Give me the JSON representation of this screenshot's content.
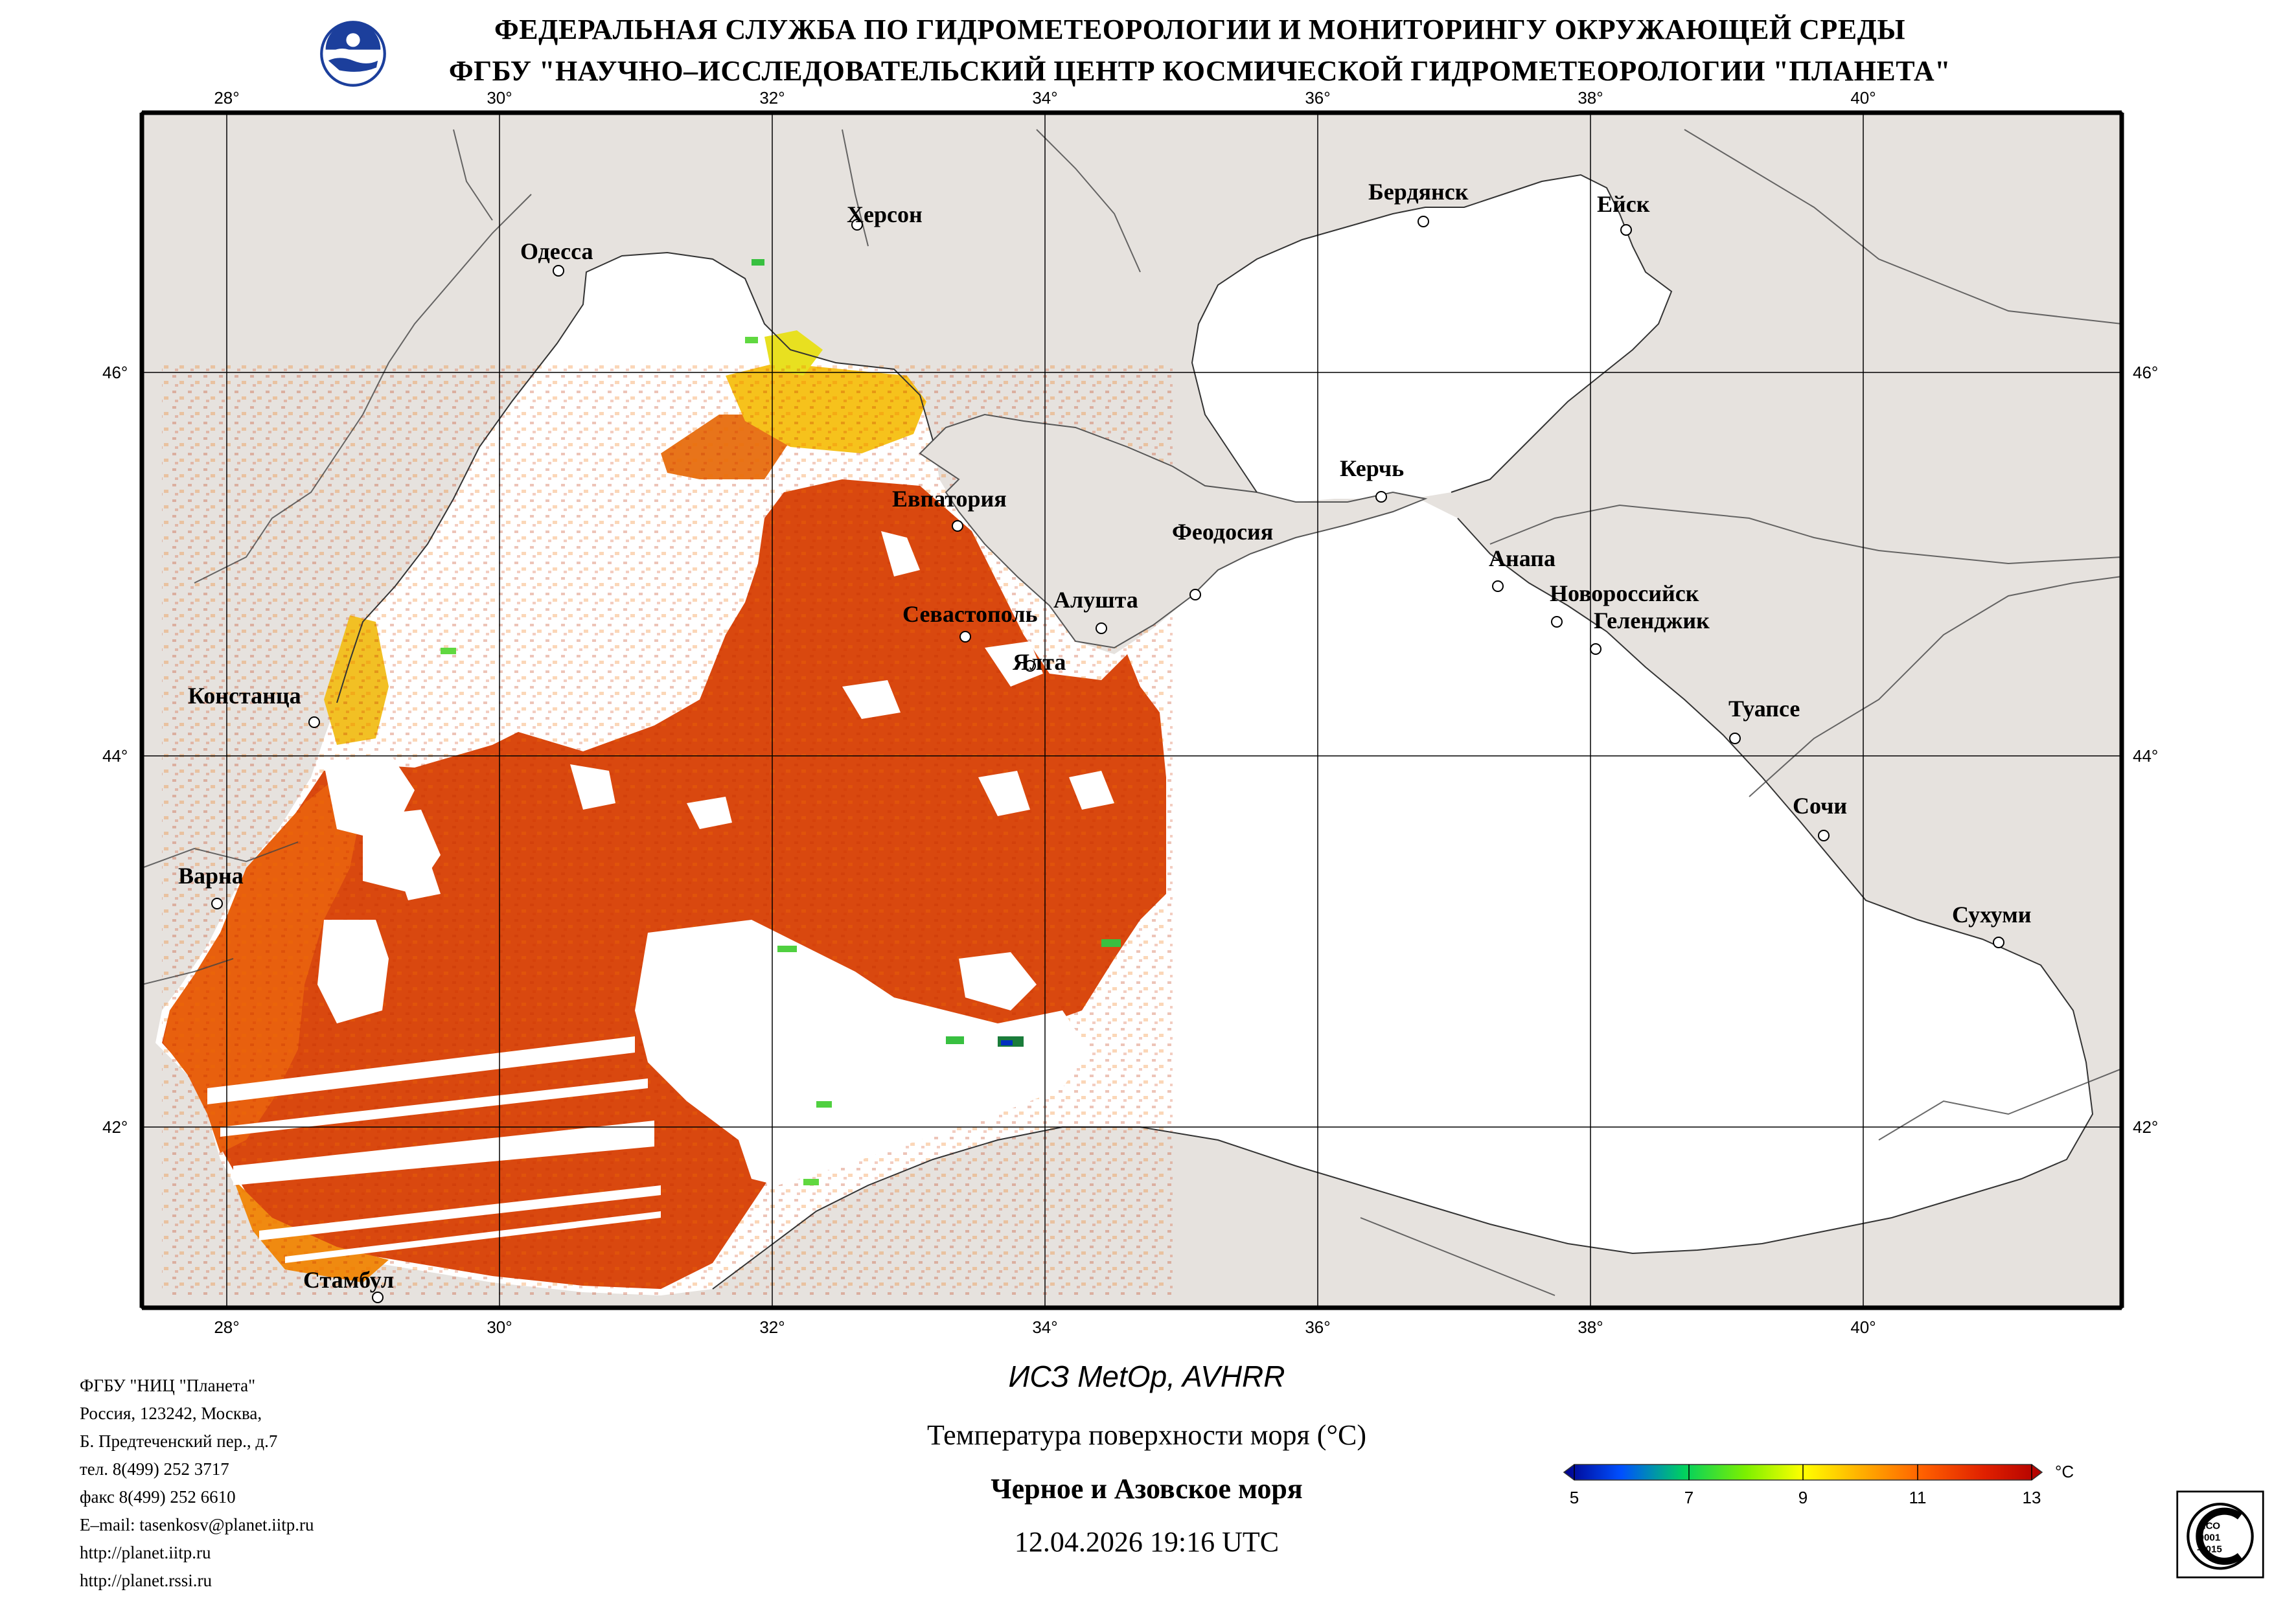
{
  "header": {
    "line1": "ФЕДЕРАЛЬНАЯ СЛУЖБА ПО ГИДРОМЕТЕОРОЛОГИИ И МОНИТОРИНГУ ОКРУЖАЮЩЕЙ СРЕДЫ",
    "line2": "ФГБУ \"НАУЧНО–ИССЛЕДОВАТЕЛЬСКИЙ ЦЕНТР КОСМИЧЕСКОЙ ГИДРОМЕТЕОРОЛОГИИ \"ПЛАНЕТА\"",
    "logo_icon": "planeta-globe-logo"
  },
  "map": {
    "lon_labels": [
      "28°",
      "30°",
      "32°",
      "34°",
      "36°",
      "38°",
      "40°"
    ],
    "lat_labels": [
      "46°",
      "44°",
      "42°"
    ],
    "cities": [
      {
        "name": "Одесса"
      },
      {
        "name": "Херсон"
      },
      {
        "name": "Бердянск"
      },
      {
        "name": "Ейск"
      },
      {
        "name": "Евпатория"
      },
      {
        "name": "Керчь"
      },
      {
        "name": "Феодосия"
      },
      {
        "name": "Анапа"
      },
      {
        "name": "Новороссийск"
      },
      {
        "name": "Геленджик"
      },
      {
        "name": "Севастополь"
      },
      {
        "name": "Алушта"
      },
      {
        "name": "Ялта"
      },
      {
        "name": "Констанца"
      },
      {
        "name": "Туапсе"
      },
      {
        "name": "Сочи"
      },
      {
        "name": "Варна"
      },
      {
        "name": "Сухуми"
      },
      {
        "name": "Стамбул"
      }
    ],
    "colors": {
      "land": "#e6e2de",
      "sea_nodata": "#ffffff",
      "grid": "#000000"
    }
  },
  "footer": {
    "org_lines": [
      "ФГБУ \"НИЦ \"Планета\"",
      "Россия, 123242, Москва,",
      "Б. Предтеченский пер., д.7",
      "тел. 8(499) 252 3717",
      "факс 8(499) 252 6610",
      "E–mail: tasenkosv@planet.iitp.ru",
      "http://planet.iitp.ru",
      "http://planet.rssi.ru"
    ],
    "satellite": "ИСЗ MetOp, AVHRR",
    "parameter": "Температура поверхности моря (°C)",
    "region": "Черное и Азовское моря",
    "datetime": "12.04.2026 19:16 UTC"
  },
  "colorbar": {
    "unit": "°C",
    "ticks": [
      "5",
      "7",
      "9",
      "11",
      "13"
    ],
    "colors": [
      "#00008b",
      "#0050ff",
      "#00d060",
      "#7cf000",
      "#ffff00",
      "#ffb000",
      "#ff6000",
      "#e02000",
      "#b00000"
    ]
  },
  "certificate": {
    "icon": "iso-certificate-icon",
    "line1": "ИСО",
    "line2": "9001",
    "line3": "-2015"
  }
}
